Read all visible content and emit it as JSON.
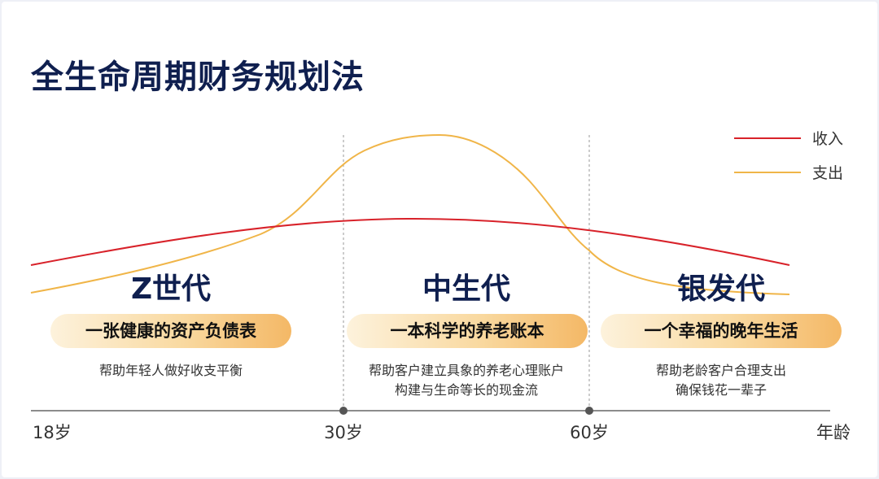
{
  "title": "全生命周期财务规划法",
  "legend": {
    "income": {
      "label": "收入",
      "color": "#d8222a"
    },
    "expense": {
      "label": "支出",
      "color": "#f0b548"
    }
  },
  "stages": [
    {
      "name": "Z世代",
      "tagline": "一张健康的资产负债表",
      "desc": [
        "帮助年轻人做好收支平衡"
      ]
    },
    {
      "name": "中生代",
      "tagline": "一本科学的养老账本",
      "desc": [
        "帮助客户建立具象的养老心理账户",
        "构建与生命等长的现金流"
      ]
    },
    {
      "name": "银发代",
      "tagline": "一个幸福的晚年生活",
      "desc": [
        "帮助老龄客户合理支出",
        "确保钱花一辈子"
      ]
    }
  ],
  "axis": {
    "ticks": [
      "18岁",
      "30岁",
      "60岁"
    ],
    "end_label": "年龄"
  }
}
